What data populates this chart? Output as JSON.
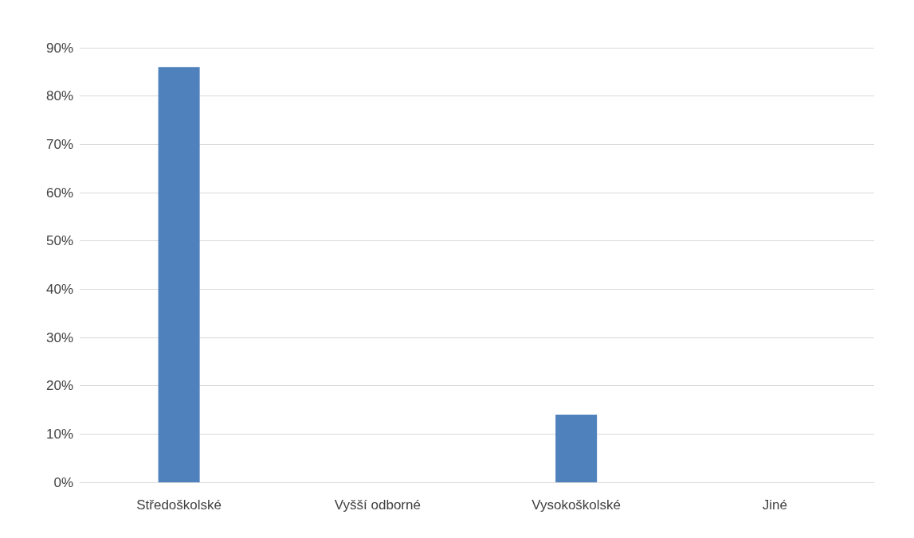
{
  "chart_data": {
    "type": "bar",
    "categories": [
      "Středoškolské",
      "Vyšší odborné",
      "Vysokoškolské",
      "Jiné"
    ],
    "values": [
      86,
      0,
      14,
      0
    ],
    "color": "#4f81bd",
    "ylim": [
      0,
      90
    ],
    "yticks": [
      {
        "value": 0,
        "label": "0%"
      },
      {
        "value": 10,
        "label": "10%"
      },
      {
        "value": 20,
        "label": "20%"
      },
      {
        "value": 30,
        "label": "30%"
      },
      {
        "value": 40,
        "label": "40%"
      },
      {
        "value": 50,
        "label": "50%"
      },
      {
        "value": 60,
        "label": "60%"
      },
      {
        "value": 70,
        "label": "70%"
      },
      {
        "value": 80,
        "label": "80%"
      },
      {
        "value": 90,
        "label": "90%"
      }
    ],
    "grid": "y"
  }
}
